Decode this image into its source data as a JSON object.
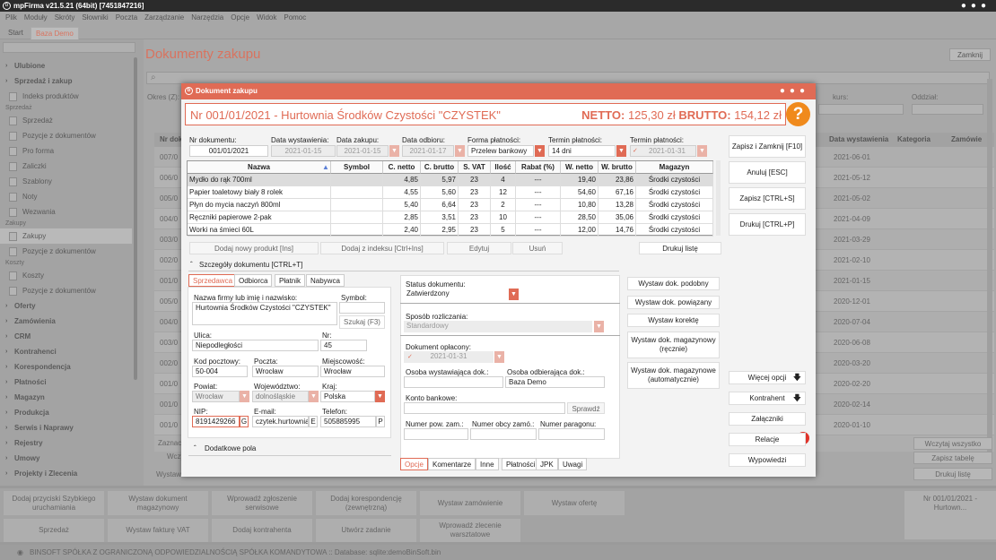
{
  "window": {
    "title": "mpFirma v21.5.21 (64bit) [7451847216]"
  },
  "menu": [
    "Plik",
    "Moduły",
    "Skróty",
    "Słowniki",
    "Poczta",
    "Zarządzanie",
    "Narzędzia",
    "Opcje",
    "Widok",
    "Pomoc"
  ],
  "tabs": {
    "start": "Start",
    "baza": "Baza Demo"
  },
  "sidebar": {
    "items": [
      {
        "t": "Ulubione",
        "k": "g"
      },
      {
        "t": "Sprzedaż i zakup",
        "k": "g"
      },
      {
        "t": "Indeks produktów",
        "k": "i"
      },
      {
        "t": "Sprzedaż",
        "k": "s"
      },
      {
        "t": "Sprzedaż",
        "k": "i"
      },
      {
        "t": "Pozycje z dokumentów",
        "k": "i"
      },
      {
        "t": "Pro forma",
        "k": "i"
      },
      {
        "t": "Zaliczki",
        "k": "i"
      },
      {
        "t": "Szablony",
        "k": "i"
      },
      {
        "t": "Noty",
        "k": "i"
      },
      {
        "t": "Wezwania",
        "k": "i"
      },
      {
        "t": "Zakupy",
        "k": "s"
      },
      {
        "t": "Zakupy",
        "k": "i",
        "sel": true
      },
      {
        "t": "Pozycje z dokumentów",
        "k": "i"
      },
      {
        "t": "Koszty",
        "k": "s"
      },
      {
        "t": "Koszty",
        "k": "i"
      },
      {
        "t": "Pozycje z dokumentów",
        "k": "i"
      },
      {
        "t": "Oferty",
        "k": "g"
      },
      {
        "t": "Zamówienia",
        "k": "g"
      },
      {
        "t": "CRM",
        "k": "g"
      },
      {
        "t": "Kontrahenci",
        "k": "g"
      },
      {
        "t": "Korespondencja",
        "k": "g"
      },
      {
        "t": "Płatności",
        "k": "g"
      },
      {
        "t": "Magazyn",
        "k": "g"
      },
      {
        "t": "Produkcja",
        "k": "g"
      },
      {
        "t": "Serwis i Naprawy",
        "k": "g"
      },
      {
        "t": "Rejestry",
        "k": "g"
      },
      {
        "t": "Umowy",
        "k": "g"
      },
      {
        "t": "Projekty i Zlecenia",
        "k": "g"
      }
    ]
  },
  "background": {
    "page_title": "Dokumenty zakupu",
    "close_label": "Zamknij",
    "okres_label": "Okres (Z):",
    "kurs_label": "kurs:",
    "oddzial_label": "Oddział:",
    "col_nr": "Nr doku",
    "col_data": "Data wystawienia",
    "col_kat": "Kategoria",
    "col_zam": "Zamówie",
    "rows": [
      {
        "nr": "007/0",
        "data": "2021-06-01"
      },
      {
        "nr": "006/0",
        "data": "2021-05-12"
      },
      {
        "nr": "005/0",
        "data": "2021-05-02"
      },
      {
        "nr": "004/0",
        "data": "2021-04-09"
      },
      {
        "nr": "003/0",
        "data": "2021-03-29"
      },
      {
        "nr": "002/0",
        "data": "2021-02-10"
      },
      {
        "nr": "001/0",
        "data": "2021-01-15"
      },
      {
        "nr": "005/0",
        "data": "2020-12-01"
      },
      {
        "nr": "004/0",
        "data": "2020-07-04"
      },
      {
        "nr": "003/0",
        "data": "2020-06-08"
      },
      {
        "nr": "002/0",
        "data": "2020-03-20"
      },
      {
        "nr": "001/0",
        "data": "2020-02-20"
      },
      {
        "nr": "001/0",
        "data": "2020-02-14"
      },
      {
        "nr": "001/0",
        "data": "2020-01-10"
      }
    ],
    "zaznacz": "Zaznac",
    "wczy": "Wczy",
    "wystaw": "Wystaw",
    "wczytaj_wszystko": "Wczytaj wszystko",
    "zapisz_tabele": "Zapisz tabelę",
    "drukuj_liste": "Drukuj listę",
    "tiles": [
      "Dodaj przyciski Szybkiego uruchamiania",
      "Wystaw dokument magazynowy",
      "Wprowadź zgłoszenie serwisowe",
      "Dodaj korespondencję (zewnętrzną)",
      "Wystaw zamówienie",
      "Wystaw ofertę",
      "Sprzedaż",
      "Wystaw fakturę VAT",
      "Dodaj kontrahenta",
      "Utwórz zadanie",
      "Wprowadź zlecenie warsztatowe"
    ],
    "recent_tile": "Nr 001/01/2021 - Hurtown...",
    "status": "BINSOFT SPÓŁKA Z OGRANICZONĄ ODPOWIEDZIALNOŚCIĄ SPÓŁKA KOMANDYTOWA :: Database: sqlite:demoBinSoft.bin"
  },
  "dialog": {
    "title": "Dokument zakupu",
    "heading": "Nr 001/01/2021 - Hurtownia Środków Czystości \"CZYSTEK\"",
    "netto_label": "NETTO:",
    "netto": "125,30 zł",
    "brutto_label": "BRUTTO:",
    "brutto": "154,12 zł",
    "help": "?",
    "fields": {
      "nr_label": "Nr dokumentu:",
      "nr": "001/01/2021",
      "data_wyst_label": "Data wystawienia:",
      "data_wyst": "2021-01-15",
      "data_zak_label": "Data zakupu:",
      "data_zak": "2021-01-15",
      "data_odb_label": "Data odbioru:",
      "data_odb": "2021-01-17",
      "forma_label": "Forma płatności:",
      "forma": "Przelew bankowy",
      "termin1_label": "Termin płatności:",
      "termin1": "14 dni",
      "termin2_label": "Termin płatności:",
      "termin2": "2021-01-31"
    },
    "table": {
      "headers": [
        "Nazwa",
        "Symbol",
        "C. netto",
        "C. brutto",
        "S. VAT",
        "Ilość",
        "Rabat (%)",
        "W. netto",
        "W. brutto",
        "Magazyn"
      ],
      "rows": [
        [
          "Mydło do rąk 700ml",
          "",
          "4,85",
          "5,97",
          "23",
          "4",
          "---",
          "19,40",
          "23,86",
          "Środki czystości"
        ],
        [
          "Papier toaletowy biały 8 rolek",
          "",
          "4,55",
          "5,60",
          "23",
          "12",
          "---",
          "54,60",
          "67,16",
          "Środki czystości"
        ],
        [
          "Płyn do mycia naczyń 800ml",
          "",
          "5,40",
          "6,64",
          "23",
          "2",
          "---",
          "10,80",
          "13,28",
          "Środki czystości"
        ],
        [
          "Ręczniki papierowe 2-pak",
          "",
          "2,85",
          "3,51",
          "23",
          "10",
          "---",
          "28,50",
          "35,06",
          "Środki czystości"
        ],
        [
          "Worki na śmieci 60L",
          "",
          "2,40",
          "2,95",
          "23",
          "5",
          "---",
          "12,00",
          "14,76",
          "Środki czystości"
        ]
      ]
    },
    "row_buttons": {
      "add": "Dodaj nowy produkt [Ins]",
      "add_index": "Dodaj z indeksu [Ctrl+Ins]",
      "edit": "Edytuj",
      "delete": "Usuń",
      "print": "Drukuj listę"
    },
    "details_label": "Szczegóły dokumentu [CTRL+T]",
    "party_tabs": [
      "Sprzedawca",
      "Odbiorca",
      "Płatnik",
      "Nabywca"
    ],
    "party": {
      "name_label": "Nazwa firmy lub imię i nazwisko:",
      "name": "Hurtownia Środków Czystości \"CZYSTEK\"",
      "symbol_label": "Symbol:",
      "szukaj": "Szukaj (F3)",
      "ulica_label": "Ulica:",
      "ulica": "Niepodległości",
      "nr_label": "Nr:",
      "nr": "45",
      "kod_label": "Kod pocztowy:",
      "kod": "50-004",
      "poczta_label": "Poczta:",
      "poczta": "Wrocław",
      "miejsc_label": "Miejscowość:",
      "miejsc": "Wrocław",
      "powiat_label": "Powiat:",
      "powiat": "Wrocław",
      "woj_label": "Województwo:",
      "woj": "dolnośląskie",
      "kraj_label": "Kraj:",
      "kraj": "Polska",
      "nip_label": "NIP:",
      "nip": "8191429266",
      "nip_btn": "G",
      "email_label": "E-mail:",
      "email": "czytek.hurtownia@",
      "email_btn": "E",
      "tel_label": "Telefon:",
      "tel": "505885995",
      "tel_btn": "P"
    },
    "dodatkowe": "Dodatkowe pola",
    "status_label": "Status dokumentu:",
    "status": "Zatwierdzony",
    "sposob_label": "Sposób rozliczania:",
    "sposob": "Standardowy",
    "oplacony_label": "Dokument opłacony:",
    "oplacony_date": "2021-01-31",
    "wyst_label": "Osoba wystawiająca dok.:",
    "odb_label": "Osoba odbierająca dok.:",
    "odb": "Baza Demo",
    "konto_label": "Konto bankowe:",
    "sprawdz": "Sprawdź",
    "nr_pow_label": "Numer pow. zam.:",
    "nr_obcy_label": "Numer obcy zamó.:",
    "nr_par_label": "Numer paragonu:",
    "bottom_tabs": [
      "Opcje",
      "Komentarze",
      "Inne",
      "Płatności",
      "JPK",
      "Uwagi"
    ],
    "mid_buttons": [
      "Wystaw dok. podobny",
      "Wystaw dok. powiązany",
      "Wystaw korektę",
      "Wystaw dok. magazynowy (ręcznie)",
      "Wystaw dok. magazynowe (automatycznie)"
    ],
    "right_buttons": [
      "Zapisz i Zamknij [F10]",
      "Anuluj [ESC]",
      "Zapisz [CTRL+S]",
      "Drukuj [CTRL+P]"
    ],
    "right_lower": [
      "Więcej opcji",
      "Kontrahent",
      "Załączniki",
      "Relacje",
      "Wypowiedzi"
    ],
    "colors": {
      "accent": "#e06b55",
      "help": "#f08a1c"
    }
  }
}
